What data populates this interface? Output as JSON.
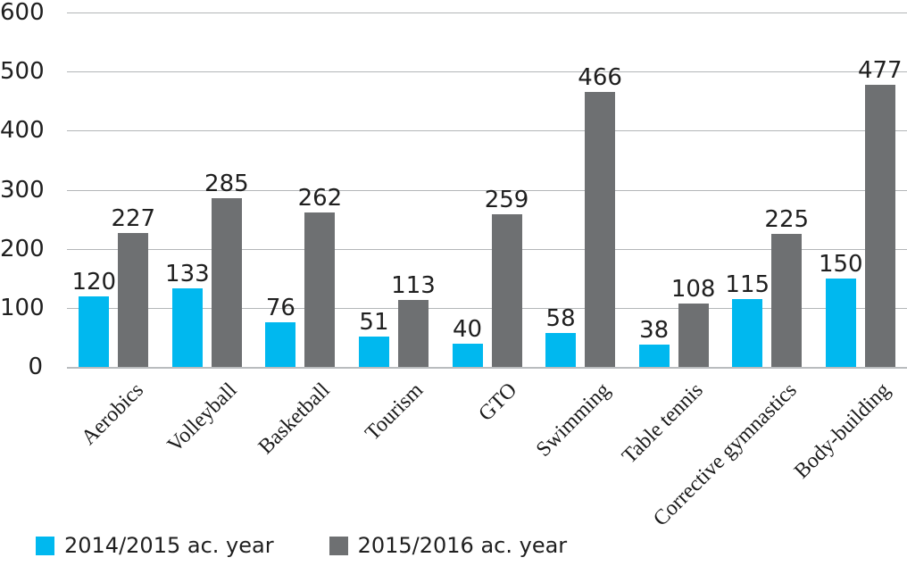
{
  "chart_data": {
    "type": "bar",
    "title": "",
    "categories": [
      "Aerobics",
      "Volleyball",
      "Basketball",
      "Tourism",
      "GTO",
      "Swimming",
      "Table tennis",
      "Corrective gymnastics",
      "Body-building"
    ],
    "series": [
      {
        "name": "2014/2015 ac. year",
        "color": "#00b8ef",
        "values": [
          120,
          133,
          76,
          51,
          40,
          58,
          38,
          115,
          150
        ]
      },
      {
        "name": "2015/2016 ac. year",
        "color": "#6e7072",
        "values": [
          227,
          285,
          262,
          113,
          259,
          466,
          108,
          225,
          477
        ]
      }
    ],
    "xlabel": "",
    "ylabel": "",
    "ylim": [
      0,
      600
    ],
    "yticks": [
      0,
      100,
      200,
      300,
      400,
      500,
      600
    ],
    "grid": "horizontal",
    "data_labels": true,
    "legend_position": "bottom"
  },
  "style": {
    "gridline_color": "#b3b6b8",
    "axis_text_color": "#1f1f1f",
    "category_text_color": "#1a1a1a",
    "background": "#ffffff"
  }
}
